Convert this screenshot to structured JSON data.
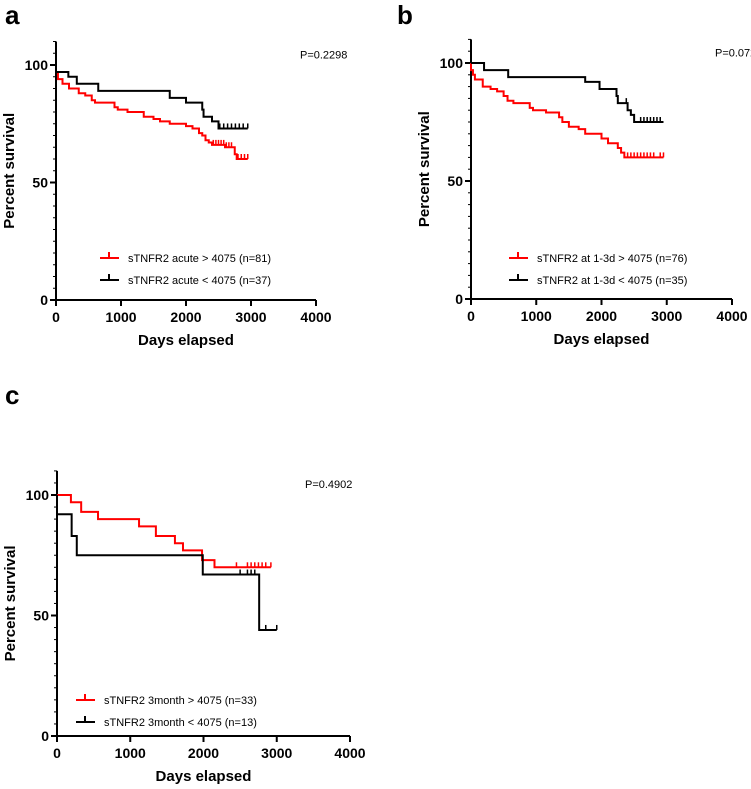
{
  "chart_data": [
    {
      "panel_label": "a",
      "type": "line",
      "subtype": "kaplan-meier",
      "xlabel": "Days elapsed",
      "ylabel": "Percent survival",
      "xlim": [
        0,
        4000
      ],
      "ylim": [
        0,
        110
      ],
      "xticks": [
        "0",
        "1000",
        "2000",
        "3000",
        "4000"
      ],
      "yticks": [
        "0",
        "50",
        "100"
      ],
      "annotation": "P=0.2298",
      "legend_position": "bottom-center",
      "series": [
        {
          "name": "sTNFR2 acute > 4075 (n=81)",
          "color": "#ff0000",
          "steps": [
            [
              0,
              100
            ],
            [
              0,
              97
            ],
            [
              30,
              94
            ],
            [
              100,
              92
            ],
            [
              200,
              90
            ],
            [
              350,
              88
            ],
            [
              450,
              87
            ],
            [
              550,
              85
            ],
            [
              600,
              84
            ],
            [
              900,
              82
            ],
            [
              950,
              81
            ],
            [
              1100,
              80
            ],
            [
              1350,
              78
            ],
            [
              1500,
              77
            ],
            [
              1600,
              76
            ],
            [
              1750,
              75
            ],
            [
              2000,
              74
            ],
            [
              2100,
              73
            ],
            [
              2200,
              71
            ],
            [
              2250,
              70
            ],
            [
              2300,
              68
            ],
            [
              2350,
              67
            ],
            [
              2400,
              66
            ],
            [
              2600,
              65
            ],
            [
              2750,
              62
            ],
            [
              2780,
              60
            ]
          ],
          "end": 2950,
          "censored": [
            2420,
            2460,
            2500,
            2540,
            2580,
            2620,
            2660,
            2700,
            2800,
            2850,
            2900,
            2950
          ]
        },
        {
          "name": "sTNFR2 acute < 4075 (n=37)",
          "color": "#000000",
          "steps": [
            [
              0,
              100
            ],
            [
              0,
              97
            ],
            [
              190,
              95
            ],
            [
              320,
              92
            ],
            [
              650,
              89
            ],
            [
              1750,
              86
            ],
            [
              2000,
              84
            ],
            [
              2250,
              81
            ],
            [
              2270,
              78
            ],
            [
              2400,
              76
            ],
            [
              2500,
              73
            ]
          ],
          "end": 2950,
          "censored": [
            2520,
            2580,
            2640,
            2700,
            2760,
            2820,
            2880,
            2950
          ]
        }
      ]
    },
    {
      "panel_label": "b",
      "type": "line",
      "subtype": "kaplan-meier",
      "xlabel": "Days elapsed",
      "ylabel": "Percent survival",
      "xlim": [
        0,
        4000
      ],
      "ylim": [
        0,
        110
      ],
      "xticks": [
        "0",
        "1000",
        "2000",
        "3000",
        "4000"
      ],
      "yticks": [
        "0",
        "50",
        "100"
      ],
      "annotation": "P=0.0726",
      "legend_position": "bottom-center",
      "series": [
        {
          "name": "sTNFR2 at 1-3d > 4075 (n=76)",
          "color": "#ff0000",
          "steps": [
            [
              0,
              100
            ],
            [
              0,
              97
            ],
            [
              30,
              95
            ],
            [
              60,
              93
            ],
            [
              180,
              90
            ],
            [
              300,
              89
            ],
            [
              400,
              88
            ],
            [
              500,
              86
            ],
            [
              560,
              84
            ],
            [
              650,
              83
            ],
            [
              900,
              81
            ],
            [
              950,
              80
            ],
            [
              1150,
              79
            ],
            [
              1350,
              77
            ],
            [
              1400,
              75
            ],
            [
              1500,
              73
            ],
            [
              1650,
              72
            ],
            [
              1750,
              70
            ],
            [
              2000,
              68
            ],
            [
              2100,
              66
            ],
            [
              2250,
              64
            ],
            [
              2300,
              62
            ],
            [
              2350,
              60
            ]
          ],
          "end": 2950,
          "censored": [
            2400,
            2450,
            2500,
            2550,
            2600,
            2650,
            2700,
            2750,
            2800,
            2900,
            2950
          ]
        },
        {
          "name": "sTNFR2 at 1-3d < 4075 (n=35)",
          "color": "#000000",
          "steps": [
            [
              0,
              100
            ],
            [
              200,
              97
            ],
            [
              570,
              94
            ],
            [
              1750,
              92
            ],
            [
              1970,
              89
            ],
            [
              2230,
              86
            ],
            [
              2250,
              83
            ],
            [
              2400,
              80
            ],
            [
              2450,
              78
            ],
            [
              2500,
              75
            ]
          ],
          "end": 2950,
          "censored": [
            2380,
            2600,
            2650,
            2700,
            2750,
            2800,
            2850,
            2900
          ]
        }
      ]
    },
    {
      "panel_label": "c",
      "type": "line",
      "subtype": "kaplan-meier",
      "xlabel": "Days elapsed",
      "ylabel": "Percent survival",
      "xlim": [
        0,
        4000
      ],
      "ylim": [
        0,
        110
      ],
      "xticks": [
        "0",
        "1000",
        "2000",
        "3000",
        "4000"
      ],
      "yticks": [
        "0",
        "50",
        "100"
      ],
      "annotation": "P=0.4902",
      "legend_position": "bottom-left",
      "series": [
        {
          "name": "sTNFR2 3month > 4075 (n=33)",
          "color": "#ff0000",
          "steps": [
            [
              0,
              100
            ],
            [
              190,
              97
            ],
            [
              330,
              93
            ],
            [
              560,
              90
            ],
            [
              1120,
              87
            ],
            [
              1350,
              83
            ],
            [
              1610,
              80
            ],
            [
              1720,
              77
            ],
            [
              1980,
              73
            ],
            [
              2150,
              70
            ]
          ],
          "end": 2920,
          "censored": [
            2450,
            2600,
            2650,
            2700,
            2750,
            2800,
            2850,
            2920
          ]
        },
        {
          "name": "sTNFR2 3month < 4075 (n=13)",
          "color": "#000000",
          "steps": [
            [
              0,
              100
            ],
            [
              0,
              92
            ],
            [
              200,
              83
            ],
            [
              270,
              75
            ],
            [
              1990,
              67
            ],
            [
              2760,
              44
            ]
          ],
          "end": 3000,
          "censored": [
            2500,
            2600,
            2650,
            2700,
            2850,
            3000
          ]
        }
      ]
    }
  ]
}
